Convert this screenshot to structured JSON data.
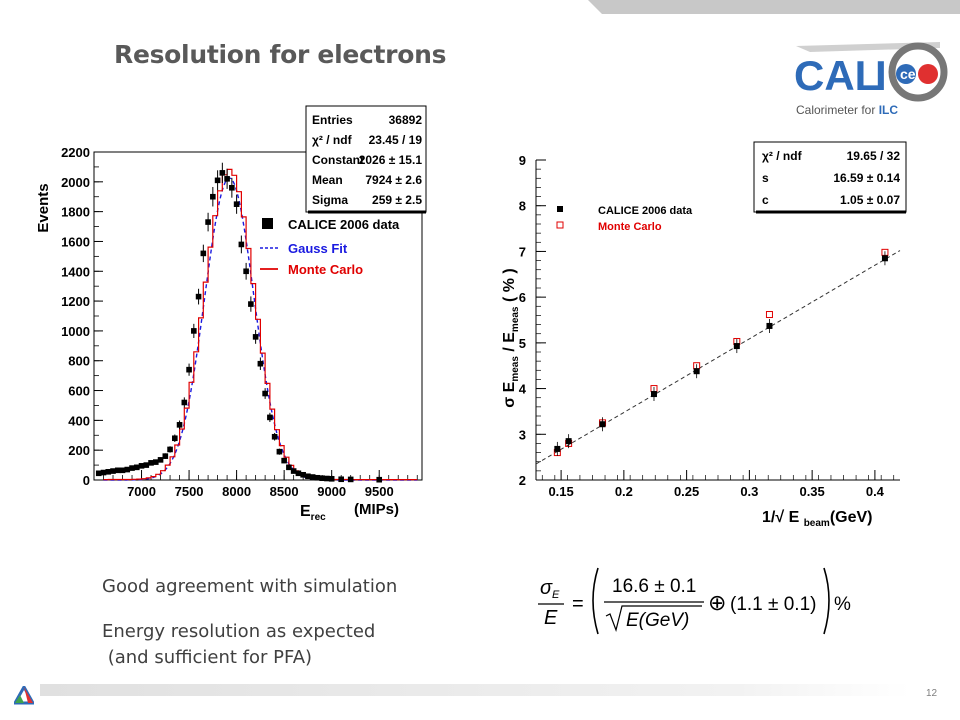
{
  "slide": {
    "title": "Resolution for electrons",
    "page_number": "12",
    "bullets": [
      "Good agreement with simulation",
      "Energy resolution as expected",
      " (and sufficient for PFA)"
    ],
    "logo": {
      "text_cal": "CAL",
      "text_i": "I",
      "text_ce": "ce",
      "subtitle_pre": "Calorimeter for ",
      "subtitle_ilc": "ILC"
    },
    "formula": {
      "lhs_num": "σ",
      "lhs_num_sub": "E",
      "lhs_den": "E",
      "rhs_num": "16.6 ± 0.1",
      "rhs_den": "E(GeV)",
      "oplus": "⊕",
      "term2": "(1.1 ± 0.1)",
      "percent": "%"
    }
  },
  "colors": {
    "title": "#595959",
    "data": "#000000",
    "mc": "#e00000",
    "fit": "#1a1ae0"
  },
  "chart_data": [
    {
      "type": "histogram",
      "xlabel_main": "E",
      "xlabel_sub": "rec",
      "xlabel_unit": "(MIPs)",
      "ylabel": "Events",
      "xlim": [
        6500,
        9950
      ],
      "ylim": [
        0,
        2200
      ],
      "xticks": [
        7000,
        7500,
        8000,
        8500,
        9000,
        9500
      ],
      "yticks": [
        0,
        200,
        400,
        600,
        800,
        1000,
        1200,
        1400,
        1600,
        1800,
        2000,
        2200
      ],
      "stats": [
        {
          "label": "Entries",
          "value": "36892"
        },
        {
          "label": "χ² / ndf",
          "value": "23.45 / 19"
        },
        {
          "label": "Constant",
          "value": "2026 ± 15.1"
        },
        {
          "label": "Mean",
          "value": "7924 ± 2.6"
        },
        {
          "label": "Sigma",
          "value": "259 ± 2.5"
        }
      ],
      "legend": [
        "CALICE 2006 data",
        "Gauss Fit",
        "Monte Carlo"
      ],
      "fit": {
        "constant": 2026,
        "mean": 7924,
        "sigma": 259
      },
      "series": [
        {
          "name": "CALICE 2006 data",
          "x": [
            6550,
            6600,
            6650,
            6700,
            6750,
            6800,
            6850,
            6900,
            6950,
            7000,
            7050,
            7100,
            7150,
            7200,
            7250,
            7300,
            7350,
            7400,
            7450,
            7500,
            7550,
            7600,
            7650,
            7700,
            7750,
            7800,
            7850,
            7900,
            7950,
            8000,
            8050,
            8100,
            8150,
            8200,
            8250,
            8300,
            8350,
            8400,
            8450,
            8500,
            8550,
            8600,
            8650,
            8700,
            8750,
            8800,
            8850,
            8900,
            8950,
            9000,
            9100,
            9200,
            9500
          ],
          "y": [
            45,
            50,
            55,
            60,
            65,
            65,
            70,
            80,
            85,
            95,
            100,
            115,
            120,
            135,
            160,
            205,
            280,
            370,
            520,
            740,
            1000,
            1230,
            1520,
            1730,
            1900,
            2010,
            2060,
            2020,
            1960,
            1850,
            1580,
            1400,
            1180,
            960,
            780,
            580,
            420,
            290,
            190,
            130,
            85,
            60,
            45,
            35,
            25,
            20,
            15,
            12,
            10,
            8,
            5,
            4,
            2
          ]
        },
        {
          "name": "Monte Carlo",
          "mean": 7924,
          "sigma": 262,
          "amplitude": 2080
        }
      ]
    },
    {
      "type": "scatter",
      "xlabel": "1/√ E",
      "xlabel_sub": "beam",
      "xlabel_unit": "(GeV)",
      "ylabel": "σ E",
      "ylabel_sub": "meas",
      "ylabel_mid": " / E",
      "ylabel_unit": "( % )",
      "xlim": [
        0.13,
        0.42
      ],
      "ylim": [
        2,
        9
      ],
      "xticks": [
        0.15,
        0.2,
        0.25,
        0.3,
        0.35,
        0.4
      ],
      "yticks": [
        2,
        3,
        4,
        5,
        6,
        7,
        8,
        9
      ],
      "stats": [
        {
          "label": "χ² / ndf",
          "value": "19.65 / 32"
        },
        {
          "label": "s",
          "value": "16.59 ± 0.14"
        },
        {
          "label": "c",
          "value": "1.05 ± 0.07"
        }
      ],
      "legend": [
        "CALICE 2006  data",
        "Monte Carlo"
      ],
      "fit_line": {
        "x": [
          0.13,
          0.42
        ],
        "y": [
          2.35,
          7.02
        ]
      },
      "series": [
        {
          "name": "CALICE 2006  data",
          "x": [
            0.147,
            0.156,
            0.183,
            0.224,
            0.258,
            0.29,
            0.316,
            0.408
          ],
          "y": [
            2.68,
            2.85,
            3.22,
            3.88,
            4.38,
            4.93,
            5.37,
            6.85
          ]
        },
        {
          "name": "Monte Carlo",
          "x": [
            0.147,
            0.156,
            0.183,
            0.224,
            0.258,
            0.29,
            0.316,
            0.408
          ],
          "y": [
            2.6,
            2.8,
            3.25,
            4.0,
            4.5,
            5.03,
            5.62,
            6.98
          ]
        }
      ]
    }
  ]
}
